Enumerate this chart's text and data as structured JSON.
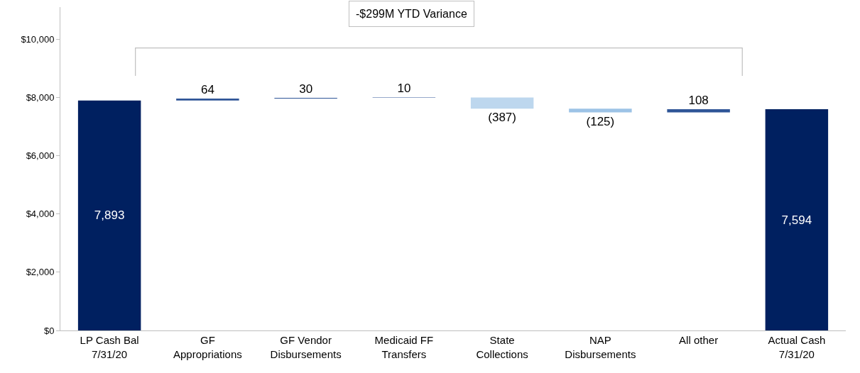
{
  "chart_data": {
    "type": "bar",
    "categories": [
      "LP Cash Bal\n7/31/20",
      "GF\nAppropriations",
      "GF Vendor\nDisbursements",
      "Medicaid FF\nTransfers",
      "State\nCollections",
      "NAP\nDisbursements",
      "All other",
      "Actual Cash\n7/31/20"
    ],
    "values": [
      7893,
      64,
      30,
      10,
      -387,
      -125,
      108,
      7594
    ],
    "base": [
      0,
      7893,
      7957,
      7987,
      7997,
      7610,
      7485,
      0
    ],
    "colors": [
      "#002060",
      "#2f5597",
      "#2f5597",
      "#2f5597",
      "#bdd7ee",
      "#9dc3e6",
      "#2f5597",
      "#002060"
    ],
    "value_labels": [
      "7,893",
      "64",
      "30",
      "10",
      "(387)",
      "(125)",
      "108",
      "7,594"
    ],
    "annotations": [
      "-$299M YTD Variance"
    ],
    "ylim": [
      0,
      11100
    ],
    "yticks": [
      {
        "value": 0,
        "label": "$0"
      },
      {
        "value": 2000,
        "label": "$2,000"
      },
      {
        "value": 4000,
        "label": "$4,000"
      },
      {
        "value": 6000,
        "label": "$6,000"
      },
      {
        "value": 8000,
        "label": "$8,000"
      },
      {
        "value": 10000,
        "label": "$10,000"
      }
    ],
    "grid": false
  }
}
